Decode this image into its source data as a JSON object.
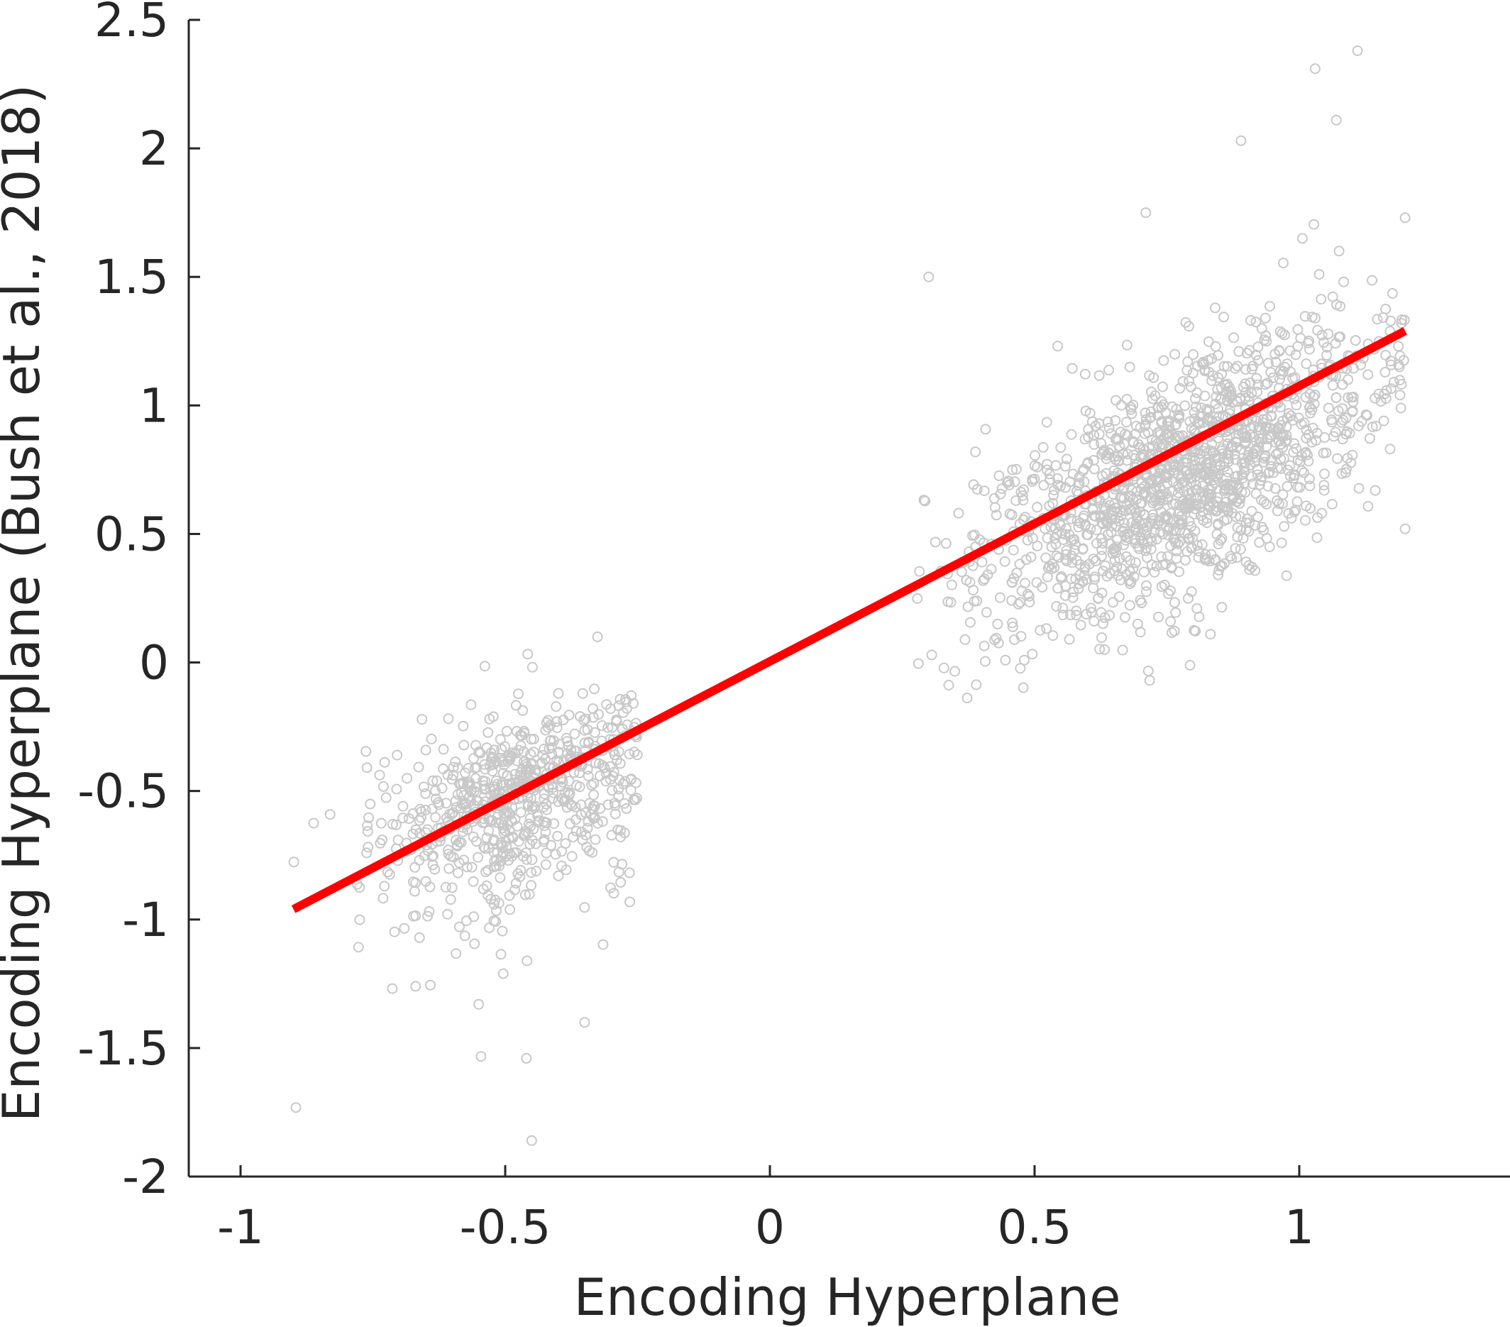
{
  "chart_data": {
    "type": "scatter",
    "xlabel": "Encoding Hyperplane",
    "ylabel": "Encoding Hyperplane (Bush et al., 2018)",
    "xlim": [
      -1.1,
      1.4
    ],
    "ylim": [
      -2,
      2.5
    ],
    "xticks": [
      -1,
      -0.5,
      0,
      0.5,
      1
    ],
    "xtick_labels": [
      "-1",
      "-0.5",
      "0",
      "0.5",
      "1"
    ],
    "yticks": [
      -2,
      -1.5,
      -1,
      -0.5,
      0,
      0.5,
      1,
      1.5,
      2,
      2.5
    ],
    "ytick_labels": [
      "-2",
      "-1.5",
      "-1",
      "-0.5",
      "0",
      "0.5",
      "1",
      "1.5",
      "2",
      "2.5"
    ],
    "grid": false,
    "box": "left-bottom axes only",
    "points_color": "#c8c8c8",
    "fit_color": "#ff0000",
    "fit_line": {
      "x": [
        -0.9,
        1.2
      ],
      "y": [
        -0.96,
        1.29
      ]
    },
    "clusters": [
      {
        "x_range": [
          -0.92,
          -0.25
        ],
        "y_center_at_x_center": -0.53,
        "x_center": -0.48,
        "slope": 0.7,
        "spread": 0.17,
        "tail_below": true,
        "approx_count": 700
      },
      {
        "x_range": [
          0.27,
          1.2
        ],
        "y_center_at_x_center": 0.72,
        "x_center": 0.78,
        "slope": 0.95,
        "spread": 0.22,
        "approx_count": 1500
      }
    ],
    "outliers": [
      {
        "x": -0.45,
        "y": -1.86
      },
      {
        "x": -0.46,
        "y": -1.54
      },
      {
        "x": -0.35,
        "y": -1.4
      },
      {
        "x": -0.55,
        "y": -1.33
      },
      {
        "x": 1.11,
        "y": 2.38
      },
      {
        "x": 1.03,
        "y": 2.31
      },
      {
        "x": 1.07,
        "y": 2.11
      },
      {
        "x": 0.89,
        "y": 2.03
      },
      {
        "x": 0.3,
        "y": 1.5
      },
      {
        "x": 1.2,
        "y": 0.52
      },
      {
        "x": 0.71,
        "y": 1.75
      },
      {
        "x": 1.2,
        "y": 1.73
      }
    ]
  }
}
